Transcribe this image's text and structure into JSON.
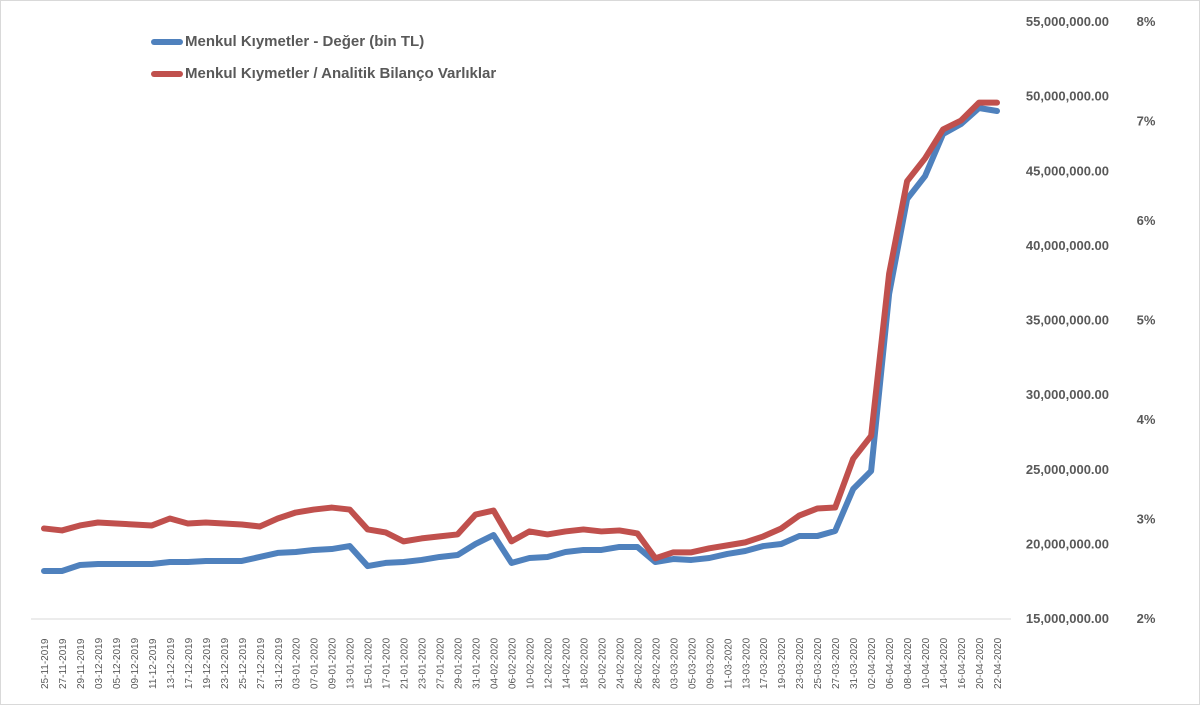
{
  "chart_data": {
    "type": "line",
    "title": "",
    "categories": [
      "25-11-2019",
      "27-11-2019",
      "29-11-2019",
      "03-12-2019",
      "05-12-2019",
      "09-12-2019",
      "11-12-2019",
      "13-12-2019",
      "17-12-2019",
      "19-12-2019",
      "23-12-2019",
      "25-12-2019",
      "27-12-2019",
      "31-12-2019",
      "03-01-2020",
      "07-01-2020",
      "09-01-2020",
      "13-01-2020",
      "15-01-2020",
      "17-01-2020",
      "21-01-2020",
      "23-01-2020",
      "27-01-2020",
      "29-01-2020",
      "31-01-2020",
      "04-02-2020",
      "06-02-2020",
      "10-02-2020",
      "12-02-2020",
      "14-02-2020",
      "18-02-2020",
      "20-02-2020",
      "24-02-2020",
      "26-02-2020",
      "28-02-2020",
      "03-03-2020",
      "05-03-2020",
      "09-03-2020",
      "11-03-2020",
      "13-03-2020",
      "17-03-2020",
      "19-03-2020",
      "23-03-2020",
      "25-03-2020",
      "27-03-2020",
      "31-03-2020",
      "02-04-2020",
      "06-04-2020",
      "08-04-2020",
      "10-04-2020",
      "14-04-2020",
      "16-04-2020",
      "20-04-2020",
      "22-04-2020"
    ],
    "series": [
      {
        "name": "Menkul Kıymetler - Değer (bin TL)",
        "axis": "left",
        "color": "#4f81bd",
        "unit": "million",
        "values": [
          18.15,
          18.15,
          18.55,
          18.62,
          18.62,
          18.62,
          18.62,
          18.75,
          18.75,
          18.82,
          18.82,
          18.82,
          19.09,
          19.36,
          19.42,
          19.56,
          19.62,
          19.82,
          18.48,
          18.69,
          18.75,
          18.89,
          19.09,
          19.22,
          19.96,
          20.56,
          18.69,
          19.02,
          19.09,
          19.42,
          19.56,
          19.56,
          19.76,
          19.76,
          18.75,
          18.95,
          18.89,
          19.02,
          19.29,
          19.49,
          19.82,
          19.96,
          20.49,
          20.49,
          20.83,
          23.64,
          24.85,
          36.71,
          43.07,
          44.61,
          47.43,
          48.1,
          49.17,
          48.97
        ]
      },
      {
        "name": "Menkul Kıymetler / Analitik Bilanço Varlıklar",
        "axis": "right",
        "color": "#c0504d",
        "unit": "percent",
        "values": [
          2.9,
          2.88,
          2.93,
          2.96,
          2.95,
          2.94,
          2.93,
          3.0,
          2.95,
          2.96,
          2.95,
          2.94,
          2.92,
          3.0,
          3.06,
          3.09,
          3.11,
          3.09,
          2.89,
          2.86,
          2.77,
          2.8,
          2.82,
          2.84,
          3.04,
          3.08,
          2.77,
          2.87,
          2.84,
          2.87,
          2.89,
          2.87,
          2.88,
          2.85,
          2.6,
          2.66,
          2.66,
          2.7,
          2.73,
          2.76,
          2.82,
          2.9,
          3.03,
          3.1,
          3.11,
          3.6,
          3.83,
          5.46,
          6.39,
          6.62,
          6.91,
          7.0,
          7.18,
          7.18
        ]
      }
    ],
    "y_left": {
      "range": [
        15000000,
        55000000
      ],
      "ticks": [
        "55,000,000.00",
        "50,000,000.00",
        "45,000,000.00",
        "40,000,000.00",
        "35,000,000.00",
        "30,000,000.00",
        "25,000,000.00",
        "20,000,000.00",
        "15,000,000.00"
      ]
    },
    "y_right": {
      "range": [
        2,
        8
      ],
      "ticks": [
        "8%",
        "7%",
        "6%",
        "5%",
        "4%",
        "3%",
        "2%"
      ]
    },
    "grid": false,
    "legend": "top-left"
  }
}
